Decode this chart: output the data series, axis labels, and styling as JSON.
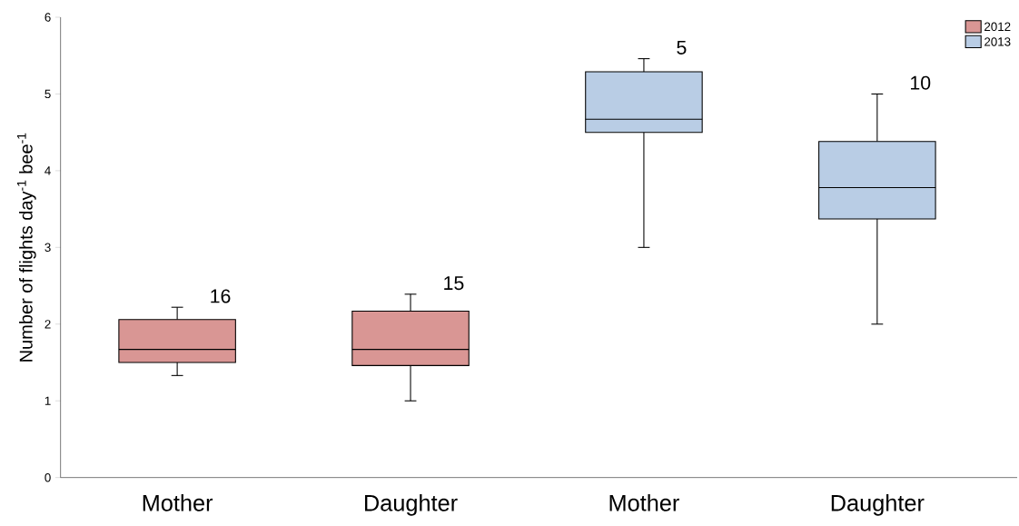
{
  "chart_data": {
    "type": "box",
    "ylabel": "Number of flights day$^{-1}$ bee$^{-1}$",
    "categories": [
      "Mother",
      "Daughter",
      "Mother",
      "Daughter"
    ],
    "series": [
      {
        "name": "2012",
        "color": "#d99694",
        "boxes": [
          {
            "low": 1.33,
            "q1": 1.5,
            "median": 1.67,
            "q3": 2.06,
            "high": 2.22
          },
          {
            "low": 1.0,
            "q1": 1.46,
            "median": 1.67,
            "q3": 2.17,
            "high": 2.39
          },
          null,
          null
        ]
      },
      {
        "name": "2013",
        "color": "#b9cde5",
        "boxes": [
          null,
          null,
          {
            "low": 3.0,
            "q1": 4.5,
            "median": 4.67,
            "q3": 5.29,
            "high": 5.46
          },
          {
            "low": 2.0,
            "q1": 3.37,
            "median": 3.78,
            "q3": 4.38,
            "high": 5.0
          }
        ]
      }
    ],
    "annotations": [
      "16",
      "15",
      "5",
      "10"
    ],
    "ylim": [
      0,
      6
    ],
    "yticks": [
      0,
      1,
      2,
      3,
      4,
      5,
      6
    ],
    "grid": false,
    "legend": "top right"
  }
}
